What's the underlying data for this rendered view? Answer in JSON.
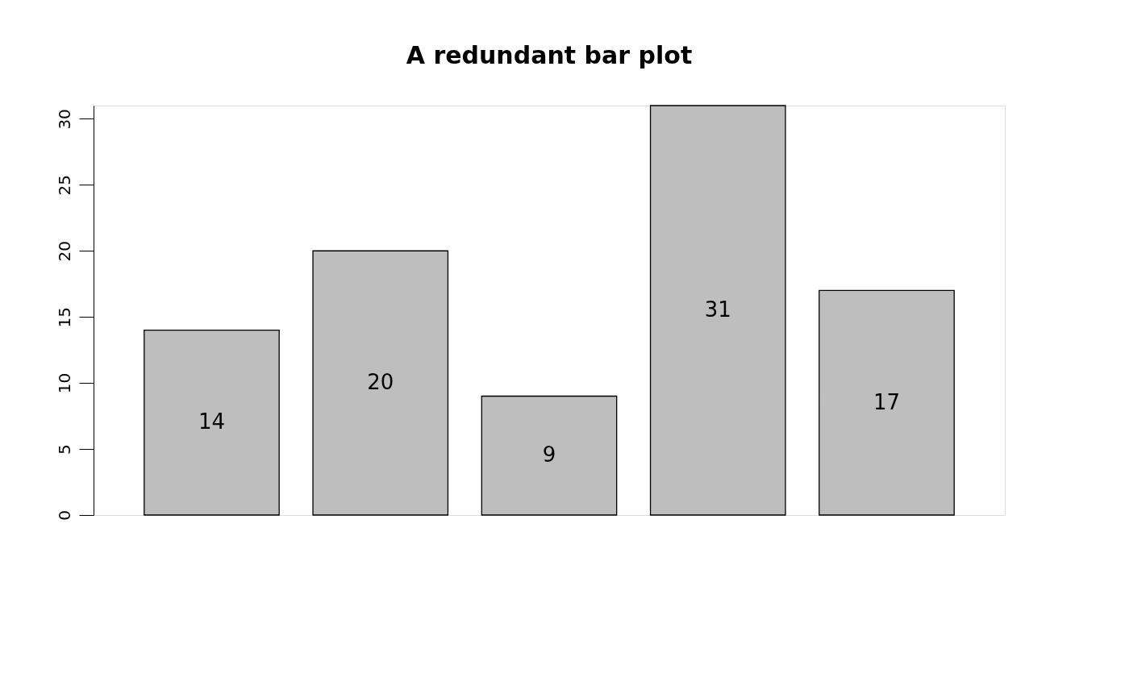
{
  "chart_data": {
    "type": "bar",
    "title": "A redundant bar plot",
    "categories": [
      null,
      null,
      null,
      null,
      null
    ],
    "values": [
      14,
      20,
      9,
      31,
      17
    ],
    "color": "#bebebe",
    "ylim": [
      0,
      31
    ],
    "yticks": [
      0,
      5,
      10,
      15,
      20,
      25,
      30
    ],
    "data_labels": true
  }
}
